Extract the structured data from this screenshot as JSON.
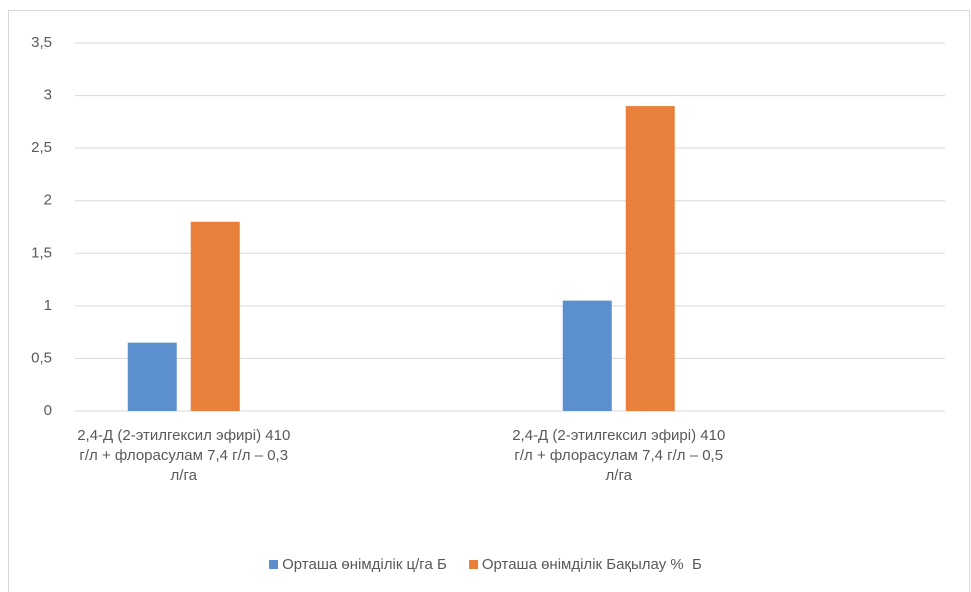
{
  "chart_data": {
    "type": "bar",
    "categories": [
      "2,4-Д (2-этилгексил эфирі) 410 г/л + флорасулам 7,4 г/л – 0,3 л/га",
      "2,4-Д (2-этилгексил эфирі) 410 г/л + флорасулам 7,4 г/л – 0,5 л/га"
    ],
    "series": [
      {
        "name": "Орташа өнімділік ц/га Б",
        "color": "#5b8fce",
        "values": [
          0.65,
          1.05
        ]
      },
      {
        "name": "Орташа өнімділік Бақылау %  Б",
        "color": "#e8803b",
        "values": [
          1.8,
          2.9
        ]
      }
    ],
    "ylim": [
      0,
      3.5
    ],
    "yticks": [
      0,
      {
        "value": 0.5,
        "label": "0,5"
      },
      1,
      {
        "value": 1.5,
        "label": "1,5"
      },
      2,
      {
        "value": 2.5,
        "label": "2,5"
      },
      3,
      {
        "value": 3.5,
        "label": "3,5"
      }
    ],
    "grid": true,
    "legend": "bottom"
  }
}
